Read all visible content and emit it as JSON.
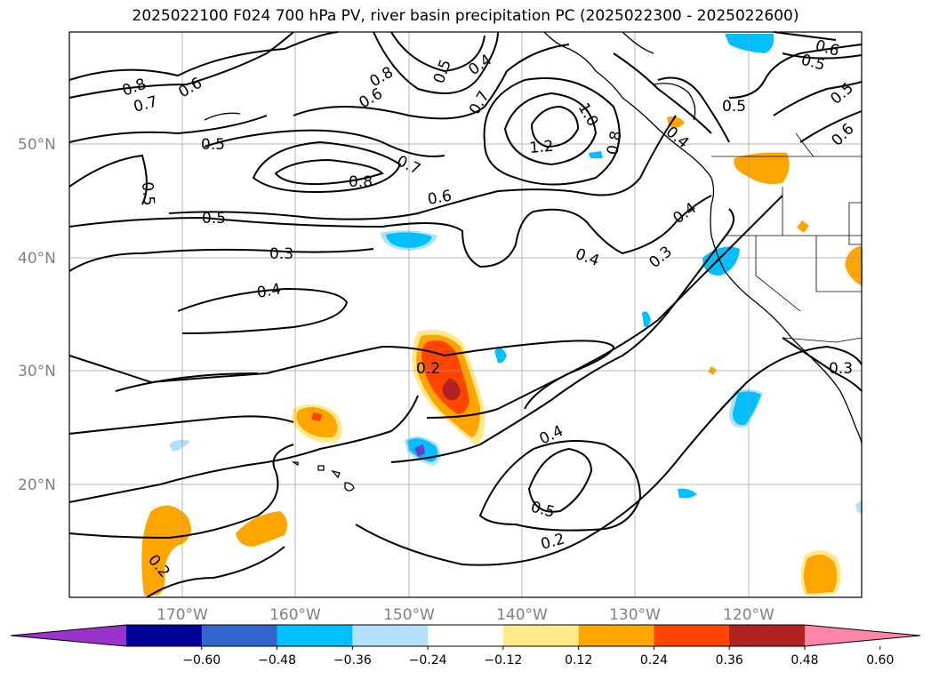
{
  "title": "2025022100 F024 700 hPa PV, river basin precipitation PC (2025022300 - 2025022600)",
  "map": {
    "projection": "PlateCarree",
    "lon_range": [
      -180,
      -110
    ],
    "lat_range": [
      10,
      60
    ],
    "lat_ticks": [
      "50°N",
      "40°N",
      "30°N",
      "20°N"
    ],
    "lon_ticks": [
      "170°W",
      "160°W",
      "150°W",
      "140°W",
      "130°W",
      "120°W"
    ],
    "gridlines": true
  },
  "contour_labels": [
    "0.8",
    "0.7",
    "0.6",
    "0.8",
    "0.6",
    "0.5",
    "0.4",
    "0.7",
    "1.0",
    "1.2",
    "0.8",
    "0.4",
    "0.6",
    "0.5",
    "0.5",
    "0.6",
    "0.5",
    "0.5",
    "0.7",
    "0.8",
    "0.6",
    "0.5",
    "0.5",
    "0.4",
    "0.4",
    "0.3",
    "0.3",
    "0.4",
    "0.2",
    "0.4",
    "0.5",
    "0.2",
    "0.2",
    "0.3"
  ],
  "colorbar": {
    "ticks": [
      "−0.60",
      "−0.48",
      "−0.36",
      "−0.24",
      "−0.12",
      "0.12",
      "0.24",
      "0.36",
      "0.48",
      "0.60"
    ],
    "colors": [
      "#9933cc",
      "#000099",
      "#3366cc",
      "#00bfff",
      "#b0e0fa",
      "#ffffff",
      "#ffe98a",
      "#ffa500",
      "#ff4500",
      "#b22222",
      "#ff85a8"
    ]
  },
  "shading_colors": {
    "orange": "#ffa500",
    "yellow": "#ffe98a",
    "red": "#ff4500",
    "darkred": "#b22222",
    "blue": "#00bfff",
    "lightblue": "#b0e0fa",
    "purple": "#6a3fbf"
  }
}
